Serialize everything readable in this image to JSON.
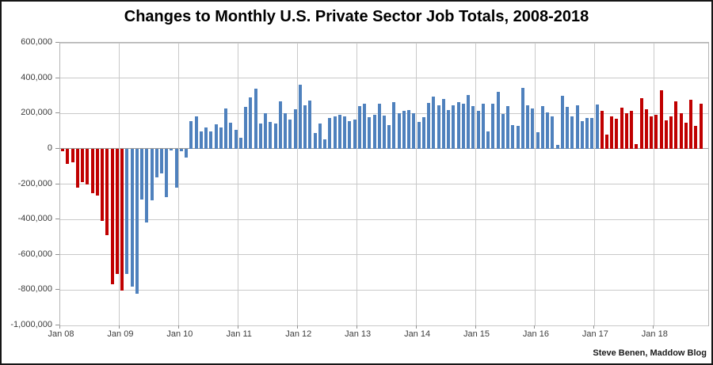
{
  "title": "Changes to Monthly U.S. Private Sector Job Totals, 2008-2018",
  "credit": "Steve Benen, Maddow Blog",
  "chart_data": {
    "type": "bar",
    "title": "Changes to Monthly U.S. Private Sector Job Totals, 2008-2018",
    "xlabel": "",
    "ylabel": "",
    "ylim": [
      -1000000,
      600000
    ],
    "grid": true,
    "start_month": "Jan 08",
    "end_month": "Oct 18",
    "x_tick_labels": [
      "Jan 08",
      "Jan 09",
      "Jan 10",
      "Jan 11",
      "Jan 12",
      "Jan 13",
      "Jan 14",
      "Jan 15",
      "Jan 16",
      "Jan 17",
      "Jan 18"
    ],
    "y_ticks": [
      600000,
      400000,
      200000,
      0,
      -200000,
      -400000,
      -600000,
      -800000,
      -1000000
    ],
    "y_tick_labels": [
      "600,000",
      "400,000",
      "200,000",
      "0",
      "-200,000",
      "-400,000",
      "-600,000",
      "-800,000",
      "-1,000,000"
    ],
    "colors": {
      "red": "#C00000",
      "blue": "#4F81BD"
    },
    "color_rule": {
      "red_months": "Jan 08 through Jan 09 and Feb 17 through Oct 18",
      "blue_months": "Feb 09 through Jan 17",
      "red_end_index": 12,
      "blue_end_index": 108
    },
    "values": [
      -13000,
      -85000,
      -76000,
      -220000,
      -190000,
      -200000,
      -250000,
      -267000,
      -409000,
      -488000,
      -767000,
      -708000,
      -804000,
      -707000,
      -780000,
      -820000,
      -287000,
      -417000,
      -290000,
      -163000,
      -138000,
      -272000,
      -10000,
      -222000,
      -12000,
      -48000,
      155000,
      181000,
      99000,
      120000,
      99000,
      140000,
      121000,
      226000,
      146000,
      106000,
      60000,
      235000,
      289000,
      340000,
      142000,
      200000,
      151000,
      145000,
      270000,
      200000,
      165000,
      225000,
      363000,
      244000,
      274000,
      91000,
      144000,
      54000,
      176000,
      181000,
      191000,
      185000,
      158000,
      166000,
      240000,
      255000,
      178000,
      193000,
      256000,
      188000,
      136000,
      263000,
      203000,
      215000,
      218000,
      199000,
      150000,
      180000,
      260000,
      296000,
      248000,
      281000,
      221000,
      248000,
      263000,
      256000,
      305000,
      241000,
      215000,
      256000,
      96000,
      253000,
      320000,
      196000,
      243000,
      136000,
      128000,
      343000,
      246000,
      228000,
      95000,
      240000,
      206000,
      181000,
      21000,
      300000,
      236000,
      181000,
      248000,
      158000,
      173000,
      176000,
      252000,
      214000,
      79000,
      181000,
      169000,
      233000,
      199000,
      215000,
      27000,
      286000,
      224000,
      185000,
      194000,
      330000,
      163000,
      181000,
      268000,
      199000,
      147000,
      278000,
      129000,
      253000
    ]
  }
}
